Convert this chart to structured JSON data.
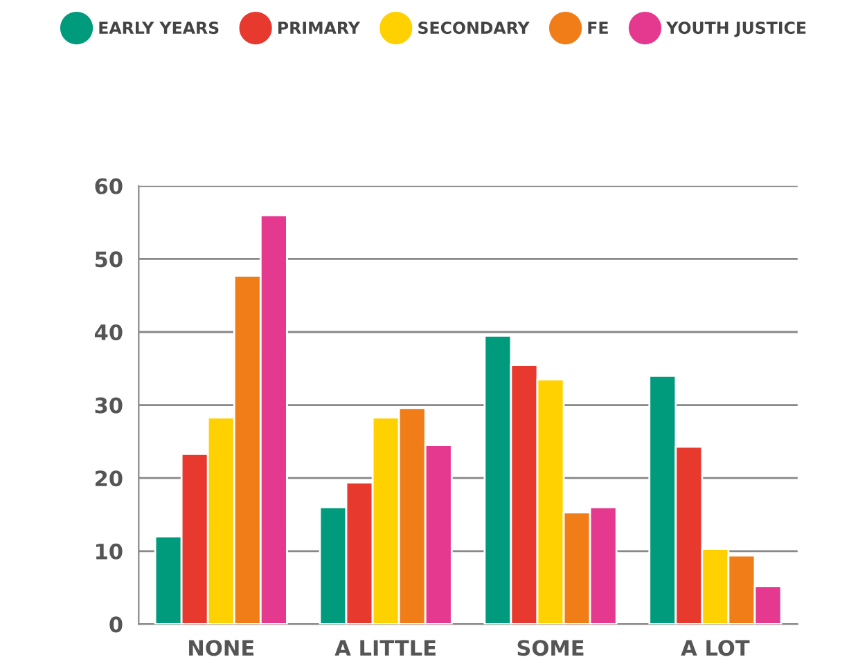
{
  "chart_data": {
    "type": "bar",
    "categories": [
      "NONE",
      "A LITTLE",
      "SOME",
      "A LOT"
    ],
    "series": [
      {
        "name": "EARLY YEARS",
        "color": "#009b7d",
        "values": [
          12,
          16,
          39.5,
          34
        ]
      },
      {
        "name": "PRIMARY",
        "color": "#e8392f",
        "values": [
          23.3,
          19.4,
          35.5,
          24.3
        ]
      },
      {
        "name": "SECONDARY",
        "color": "#ffd100",
        "values": [
          28.3,
          28.3,
          33.5,
          10.3
        ]
      },
      {
        "name": "FE",
        "color": "#f07d18",
        "values": [
          47.7,
          29.6,
          15.3,
          9.4
        ]
      },
      {
        "name": "YOUTH JUSTICE",
        "color": "#e5388f",
        "values": [
          56,
          24.5,
          16,
          5.2
        ]
      }
    ],
    "ylim": [
      0,
      60
    ],
    "yticks": [
      0,
      10,
      20,
      30,
      40,
      50,
      60
    ],
    "grid": "y",
    "legend": "top"
  }
}
